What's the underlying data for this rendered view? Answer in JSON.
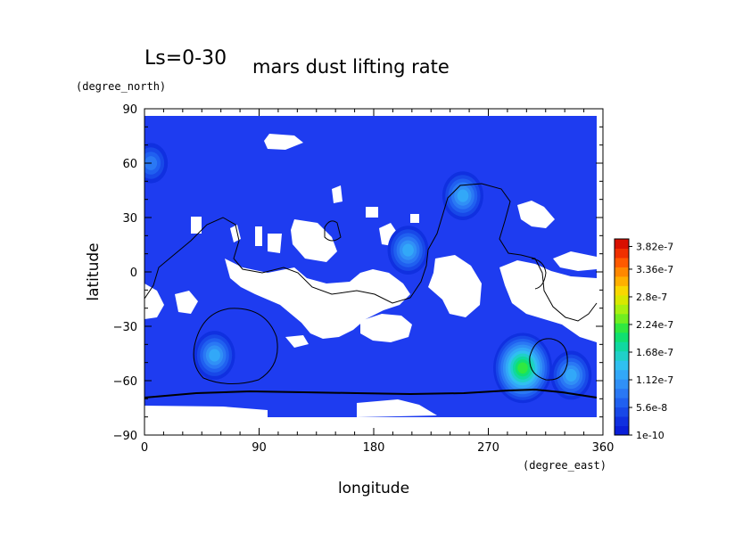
{
  "chart_data": {
    "type": "heatmap",
    "title_prefix": "Ls=0-30",
    "title": "mars dust lifting rate",
    "xlabel": "longitude",
    "ylabel": "latitude",
    "x_unit": "(degree_east)",
    "y_unit": "(degree_north)",
    "xlim": [
      0,
      360
    ],
    "ylim": [
      -90,
      90
    ],
    "x_ticks": [
      0,
      90,
      180,
      270,
      360
    ],
    "y_ticks": [
      -90,
      -60,
      -30,
      0,
      30,
      60,
      90
    ],
    "colorbar": {
      "labels": [
        "1e-10",
        "5.6e-8",
        "1.12e-7",
        "1.68e-7",
        "2.24e-7",
        "2.8e-7",
        "3.36e-7",
        "3.82e-7"
      ],
      "label_values": [
        1e-10,
        5.6e-08,
        1.12e-07,
        1.68e-07,
        2.24e-07,
        2.8e-07,
        3.36e-07,
        3.82e-07
      ],
      "colors": [
        "#0a1ed8",
        "#1030e0",
        "#1848e8",
        "#2060f0",
        "#2a78f4",
        "#3090f6",
        "#32a8f8",
        "#30c0f0",
        "#20d0c8",
        "#10d8a0",
        "#10e070",
        "#30e840",
        "#70ee20",
        "#a8f010",
        "#d8e800",
        "#f8d800",
        "#ffb000",
        "#ff8800",
        "#ff5a00",
        "#f03000",
        "#d81000"
      ]
    },
    "background_color": "#1e3cf0",
    "no_data_color": "#ffffff",
    "hotspots": [
      {
        "lon": 55,
        "lat": -46,
        "level": 6
      },
      {
        "lon": 297,
        "lat": -53,
        "level": 11
      },
      {
        "lon": 335,
        "lat": -57,
        "level": 6
      },
      {
        "lon": 250,
        "lat": 42,
        "level": 6
      },
      {
        "lon": 207,
        "lat": 12,
        "level": 6
      },
      {
        "lon": 5,
        "lat": 60,
        "level": 4
      }
    ]
  }
}
